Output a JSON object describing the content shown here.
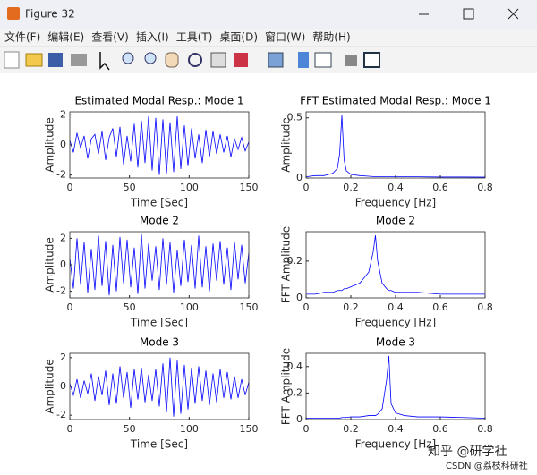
{
  "window": {
    "title": "Figure 32",
    "menus": [
      "文件(F)",
      "编辑(E)",
      "查看(V)",
      "插入(I)",
      "工具(T)",
      "桌面(D)",
      "窗口(W)",
      "帮助(H)"
    ],
    "watermark": [
      "知乎 @研学社",
      "CSDN @荔枝科研社"
    ]
  },
  "chart_data": [
    {
      "type": "line",
      "title": "Estimated Modal Resp.: Mode 1",
      "xlabel": "Time [Sec]",
      "ylabel": "Amplitude",
      "color": "#0000ff",
      "x": [
        0,
        3,
        6,
        9,
        12,
        15,
        18,
        21,
        24,
        27,
        30,
        33,
        36,
        39,
        42,
        45,
        48,
        51,
        54,
        57,
        60,
        63,
        66,
        69,
        72,
        75,
        78,
        81,
        84,
        87,
        90,
        93,
        96,
        99,
        102,
        105,
        108,
        111,
        114,
        117,
        120,
        123,
        126,
        129,
        132,
        135,
        138,
        141,
        144,
        147,
        150
      ],
      "values": [
        0.3,
        -0.5,
        0.8,
        -0.2,
        0.6,
        -0.9,
        0.4,
        0.7,
        -0.6,
        0.9,
        -1.0,
        0.5,
        1.1,
        -0.8,
        1.2,
        -1.3,
        0.6,
        -1.1,
        1.4,
        -1.5,
        1.6,
        -1.2,
        1.9,
        -1.7,
        1.8,
        -2.0,
        1.7,
        -1.9,
        1.5,
        -1.8,
        1.9,
        -1.6,
        1.3,
        -1.4,
        1.1,
        -0.9,
        0.7,
        -1.2,
        1.0,
        -0.8,
        0.9,
        -0.6,
        0.7,
        -0.5,
        0.6,
        -0.8,
        0.4,
        -0.3,
        0.5,
        -0.4,
        0.2
      ],
      "xlim": [
        0,
        150
      ],
      "ylim": [
        -2.2,
        2.2
      ],
      "xticks": [
        0,
        50,
        100,
        150
      ],
      "yticks": [
        -2,
        0,
        2
      ]
    },
    {
      "type": "line",
      "title": "FFT Estimated Modal Resp.: Mode 1",
      "xlabel": "Frequency [Hz]",
      "ylabel": "Amplitude",
      "color": "#0000ff",
      "x": [
        0,
        0.04,
        0.08,
        0.1,
        0.12,
        0.14,
        0.15,
        0.16,
        0.17,
        0.18,
        0.2,
        0.24,
        0.28,
        0.3,
        0.31,
        0.32,
        0.34,
        0.36,
        0.37,
        0.38,
        0.4,
        0.44,
        0.5,
        0.6,
        0.7,
        0.8
      ],
      "values": [
        0.01,
        0.02,
        0.02,
        0.03,
        0.04,
        0.08,
        0.2,
        0.52,
        0.15,
        0.06,
        0.03,
        0.02,
        0.015,
        0.012,
        0.012,
        0.01,
        0.01,
        0.01,
        0.01,
        0.01,
        0.01,
        0.01,
        0.01,
        0.008,
        0.008,
        0.007
      ],
      "xlim": [
        0,
        0.8
      ],
      "ylim": [
        0,
        0.55
      ],
      "xticks": [
        0,
        0.2,
        0.4,
        0.6,
        0.8
      ],
      "yticks": [
        0,
        0.5
      ]
    },
    {
      "type": "line",
      "title": "Mode 2",
      "xlabel": "Time [Sec]",
      "ylabel": "Amplitude",
      "color": "#0000ff",
      "x": [
        0,
        3,
        6,
        9,
        12,
        15,
        18,
        21,
        24,
        27,
        30,
        33,
        36,
        39,
        42,
        45,
        48,
        51,
        54,
        57,
        60,
        63,
        66,
        69,
        72,
        75,
        78,
        81,
        84,
        87,
        90,
        93,
        96,
        99,
        102,
        105,
        108,
        111,
        114,
        117,
        120,
        123,
        126,
        129,
        132,
        135,
        138,
        141,
        144,
        147,
        150
      ],
      "values": [
        0.5,
        -1.8,
        2.0,
        -1.5,
        1.7,
        -2.1,
        1.2,
        -1.9,
        2.2,
        -1.6,
        1.8,
        -2.3,
        1.5,
        -2.0,
        2.1,
        -1.4,
        1.9,
        -1.7,
        1.3,
        -2.2,
        2.3,
        -1.8,
        1.6,
        -1.2,
        1.4,
        -1.9,
        2.0,
        -1.5,
        1.7,
        -2.1,
        1.1,
        -1.6,
        1.9,
        -1.3,
        1.5,
        -1.8,
        2.2,
        -1.7,
        1.4,
        -2.0,
        1.6,
        -1.2,
        1.8,
        -1.5,
        1.3,
        -1.9,
        1.7,
        -1.1,
        1.5,
        -1.4,
        0.9
      ],
      "xlim": [
        0,
        150
      ],
      "ylim": [
        -2.5,
        2.5
      ],
      "xticks": [
        0,
        50,
        100,
        150
      ],
      "yticks": [
        -2,
        0,
        2
      ]
    },
    {
      "type": "line",
      "title": "Mode 2",
      "xlabel": "Frequency [Hz]",
      "ylabel": "FFT Amplitude",
      "color": "#0000ff",
      "x": [
        0,
        0.04,
        0.08,
        0.1,
        0.12,
        0.14,
        0.15,
        0.16,
        0.17,
        0.18,
        0.2,
        0.24,
        0.28,
        0.3,
        0.31,
        0.32,
        0.34,
        0.36,
        0.37,
        0.38,
        0.4,
        0.44,
        0.5,
        0.6,
        0.7,
        0.8
      ],
      "values": [
        0.02,
        0.02,
        0.03,
        0.03,
        0.03,
        0.04,
        0.04,
        0.04,
        0.05,
        0.05,
        0.06,
        0.08,
        0.14,
        0.25,
        0.34,
        0.2,
        0.08,
        0.05,
        0.04,
        0.04,
        0.03,
        0.03,
        0.03,
        0.02,
        0.02,
        0.02
      ],
      "xlim": [
        0,
        0.8
      ],
      "ylim": [
        0,
        0.36
      ],
      "xticks": [
        0,
        0.2,
        0.4,
        0.6,
        0.8
      ],
      "yticks": [
        0,
        0.2
      ]
    },
    {
      "type": "line",
      "title": "Mode 3",
      "xlabel": "Time [Sec]",
      "ylabel": "Amplitude",
      "color": "#0000ff",
      "x": [
        0,
        3,
        6,
        9,
        12,
        15,
        18,
        21,
        24,
        27,
        30,
        33,
        36,
        39,
        42,
        45,
        48,
        51,
        54,
        57,
        60,
        63,
        66,
        69,
        72,
        75,
        78,
        81,
        84,
        87,
        90,
        93,
        96,
        99,
        102,
        105,
        108,
        111,
        114,
        117,
        120,
        123,
        126,
        129,
        132,
        135,
        138,
        141,
        144,
        147,
        150
      ],
      "values": [
        0.2,
        -0.6,
        0.5,
        -0.8,
        0.4,
        -0.5,
        0.9,
        -1.0,
        0.7,
        -0.6,
        1.1,
        -1.3,
        0.9,
        -1.2,
        1.4,
        -0.8,
        1.0,
        -1.5,
        1.2,
        -0.9,
        1.3,
        -1.1,
        0.8,
        -1.0,
        1.2,
        -1.4,
        1.6,
        -1.8,
        2.0,
        -2.1,
        1.8,
        -1.9,
        1.5,
        -1.6,
        1.3,
        -1.2,
        1.4,
        -1.0,
        1.1,
        -1.3,
        0.9,
        -1.1,
        1.2,
        -0.8,
        1.0,
        -0.9,
        0.7,
        -0.8,
        0.5,
        -0.6,
        0.3
      ],
      "xlim": [
        0,
        150
      ],
      "ylim": [
        -2.3,
        2.3
      ],
      "xticks": [
        0,
        50,
        100,
        150
      ],
      "yticks": [
        -2,
        0,
        2
      ]
    },
    {
      "type": "line",
      "title": "Mode 3",
      "xlabel": "Frequency [Hz]",
      "ylabel": "FFT Amplitude",
      "color": "#0000ff",
      "x": [
        0,
        0.04,
        0.08,
        0.1,
        0.12,
        0.14,
        0.15,
        0.16,
        0.17,
        0.18,
        0.2,
        0.24,
        0.28,
        0.3,
        0.31,
        0.32,
        0.34,
        0.36,
        0.37,
        0.38,
        0.4,
        0.44,
        0.5,
        0.6,
        0.7,
        0.8
      ],
      "values": [
        0.01,
        0.01,
        0.01,
        0.01,
        0.01,
        0.01,
        0.01,
        0.015,
        0.015,
        0.015,
        0.02,
        0.02,
        0.03,
        0.03,
        0.03,
        0.04,
        0.08,
        0.3,
        0.48,
        0.12,
        0.05,
        0.03,
        0.02,
        0.02,
        0.015,
        0.01
      ],
      "xlim": [
        0,
        0.8
      ],
      "ylim": [
        0,
        0.5
      ],
      "xticks": [
        0,
        0.2,
        0.4,
        0.6,
        0.8
      ],
      "yticks": [
        0,
        0.2,
        0.4
      ]
    }
  ]
}
